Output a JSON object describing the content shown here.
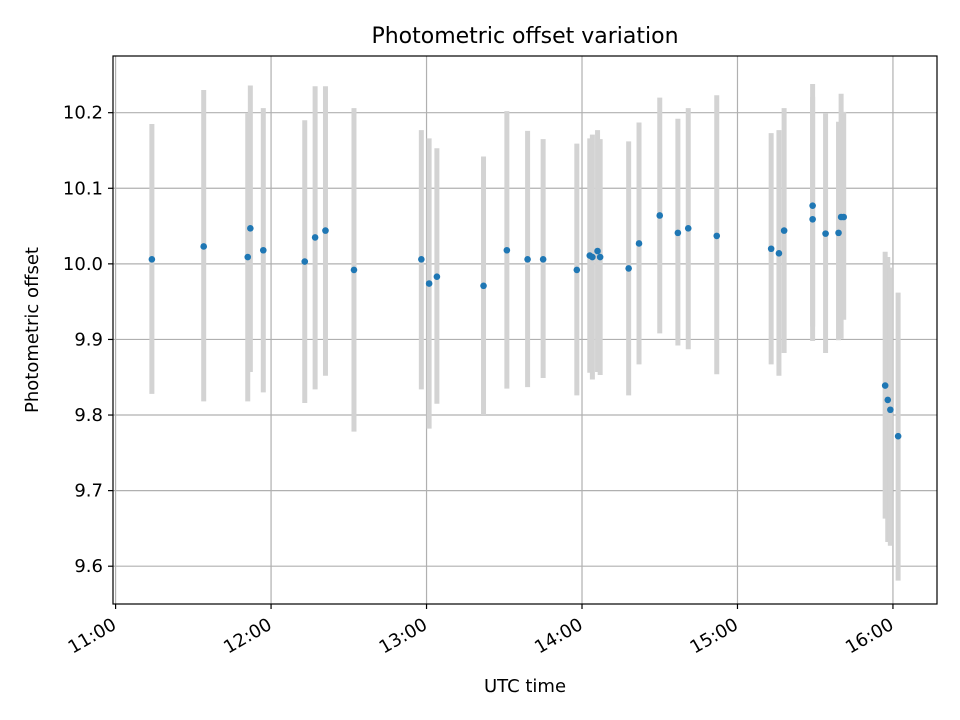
{
  "chart_data": {
    "type": "scatter",
    "title": "Photometric offset variation",
    "xlabel": "UTC time",
    "ylabel": "Photometric offset",
    "x_unit": "hours UTC",
    "xlim": [
      "10:59",
      "16:17"
    ],
    "ylim": [
      9.55,
      10.275
    ],
    "x_ticks": [
      "11:00",
      "12:00",
      "13:00",
      "14:00",
      "15:00",
      "16:00"
    ],
    "y_ticks": [
      "9.6",
      "9.7",
      "9.8",
      "9.9",
      "10.0",
      "10.1",
      "10.2"
    ],
    "grid": true,
    "colors": {
      "points": "#1f77b4",
      "error_bars": "#d3d3d3",
      "grid": "#b0b0b0"
    },
    "points": [
      {
        "x": "11:14",
        "y": 10.006,
        "ylow": 9.828,
        "yhigh": 10.185
      },
      {
        "x": "11:34",
        "y": 10.023,
        "ylow": 9.818,
        "yhigh": 10.23
      },
      {
        "x": "11:51",
        "y": 10.009,
        "ylow": 9.818,
        "yhigh": 10.199
      },
      {
        "x": "11:52",
        "y": 10.047,
        "ylow": 9.857,
        "yhigh": 10.236
      },
      {
        "x": "11:57",
        "y": 10.018,
        "ylow": 9.83,
        "yhigh": 10.206
      },
      {
        "x": "12:13",
        "y": 10.003,
        "ylow": 9.816,
        "yhigh": 10.19
      },
      {
        "x": "12:17",
        "y": 10.035,
        "ylow": 9.834,
        "yhigh": 10.235
      },
      {
        "x": "12:21",
        "y": 10.044,
        "ylow": 9.852,
        "yhigh": 10.235
      },
      {
        "x": "12:32",
        "y": 9.992,
        "ylow": 9.778,
        "yhigh": 10.206
      },
      {
        "x": "12:58",
        "y": 10.006,
        "ylow": 9.834,
        "yhigh": 10.177
      },
      {
        "x": "13:01",
        "y": 9.974,
        "ylow": 9.782,
        "yhigh": 10.166
      },
      {
        "x": "13:04",
        "y": 9.983,
        "ylow": 9.815,
        "yhigh": 10.153
      },
      {
        "x": "13:22",
        "y": 9.971,
        "ylow": 9.8,
        "yhigh": 10.142
      },
      {
        "x": "13:31",
        "y": 10.018,
        "ylow": 9.835,
        "yhigh": 10.202
      },
      {
        "x": "13:39",
        "y": 10.006,
        "ylow": 9.837,
        "yhigh": 10.176
      },
      {
        "x": "13:45",
        "y": 10.006,
        "ylow": 9.849,
        "yhigh": 10.165
      },
      {
        "x": "13:58",
        "y": 9.992,
        "ylow": 9.826,
        "yhigh": 10.159
      },
      {
        "x": "14:03",
        "y": 10.011,
        "ylow": 9.856,
        "yhigh": 10.166
      },
      {
        "x": "14:04",
        "y": 10.009,
        "ylow": 9.847,
        "yhigh": 10.171
      },
      {
        "x": "14:06",
        "y": 10.017,
        "ylow": 9.857,
        "yhigh": 10.177
      },
      {
        "x": "14:07",
        "y": 10.009,
        "ylow": 9.853,
        "yhigh": 10.165
      },
      {
        "x": "14:18",
        "y": 9.994,
        "ylow": 9.826,
        "yhigh": 10.162
      },
      {
        "x": "14:22",
        "y": 10.027,
        "ylow": 9.867,
        "yhigh": 10.187
      },
      {
        "x": "14:30",
        "y": 10.064,
        "ylow": 9.908,
        "yhigh": 10.22
      },
      {
        "x": "14:37",
        "y": 10.041,
        "ylow": 9.892,
        "yhigh": 10.192
      },
      {
        "x": "14:41",
        "y": 10.047,
        "ylow": 9.887,
        "yhigh": 10.206
      },
      {
        "x": "14:52",
        "y": 10.037,
        "ylow": 9.854,
        "yhigh": 10.223
      },
      {
        "x": "15:13",
        "y": 10.02,
        "ylow": 9.867,
        "yhigh": 10.173
      },
      {
        "x": "15:16",
        "y": 10.014,
        "ylow": 9.852,
        "yhigh": 10.177
      },
      {
        "x": "15:18",
        "y": 10.044,
        "ylow": 9.882,
        "yhigh": 10.206
      },
      {
        "x": "15:29",
        "y": 10.077,
        "ylow": 9.917,
        "yhigh": 10.238
      },
      {
        "x": "15:29",
        "y": 10.059,
        "ylow": 9.898,
        "yhigh": 10.221
      },
      {
        "x": "15:34",
        "y": 10.04,
        "ylow": 9.882,
        "yhigh": 10.199
      },
      {
        "x": "15:39",
        "y": 10.041,
        "ylow": 9.899,
        "yhigh": 10.188
      },
      {
        "x": "15:40",
        "y": 10.062,
        "ylow": 9.901,
        "yhigh": 10.225
      },
      {
        "x": "15:41",
        "y": 10.062,
        "ylow": 9.926,
        "yhigh": 10.201
      },
      {
        "x": "15:57",
        "y": 9.839,
        "ylow": 9.663,
        "yhigh": 10.016
      },
      {
        "x": "15:58",
        "y": 9.82,
        "ylow": 9.632,
        "yhigh": 10.009
      },
      {
        "x": "15:59",
        "y": 9.807,
        "ylow": 9.627,
        "yhigh": 9.995
      },
      {
        "x": "16:02",
        "y": 9.772,
        "ylow": 9.581,
        "yhigh": 9.962
      }
    ]
  }
}
